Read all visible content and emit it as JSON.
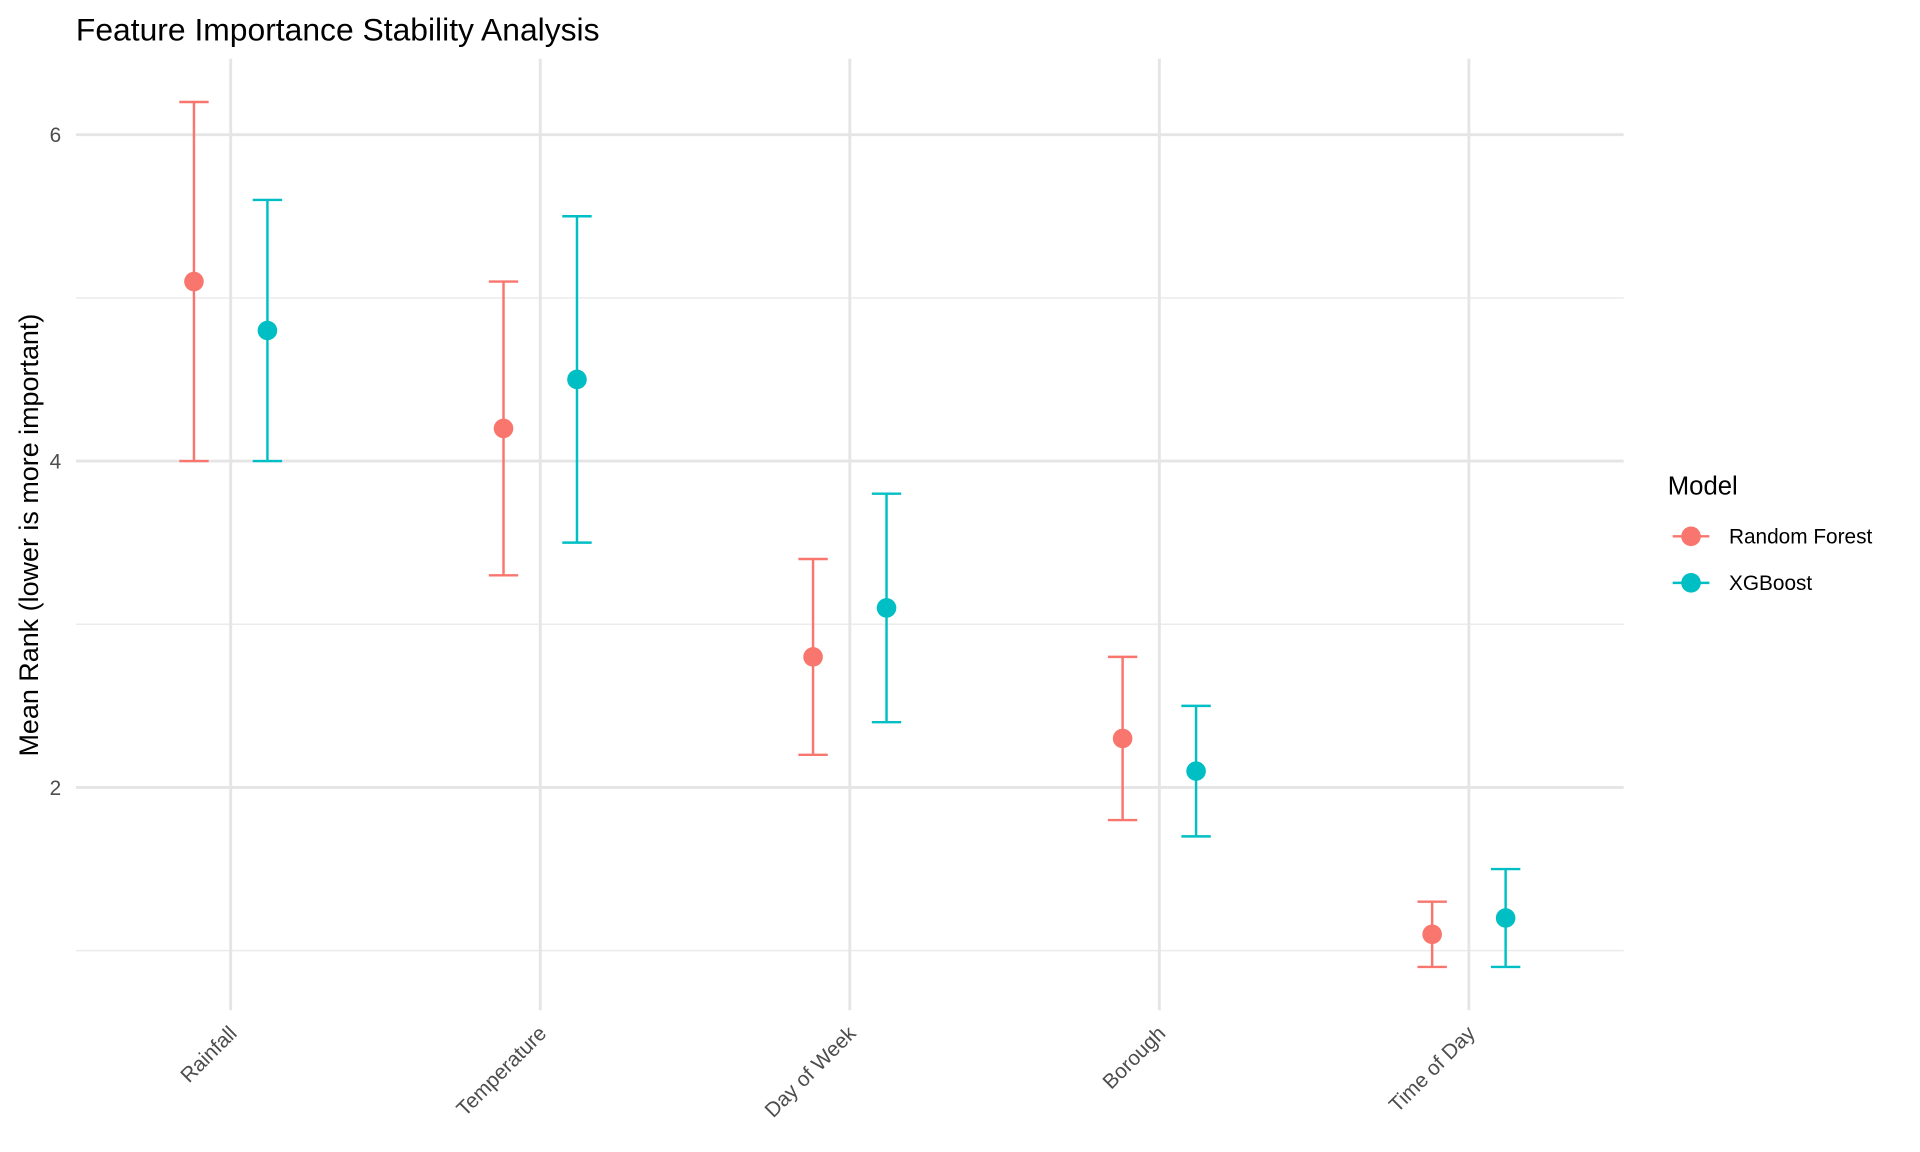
{
  "chart_data": {
    "type": "errorbar",
    "title": "Feature Importance Stability Analysis",
    "y_label": "Mean Rank (lower is more important)",
    "categories": [
      "Rainfall",
      "Temperature",
      "Day of Week",
      "Borough",
      "Time of Day"
    ],
    "series": [
      {
        "name": "Random Forest",
        "color": "#f8766d",
        "values": [
          5.1,
          4.2,
          2.8,
          2.3,
          1.1
        ],
        "errors": [
          1.1,
          0.9,
          0.6,
          0.5,
          0.2
        ]
      },
      {
        "name": "XGBoost",
        "color": "#00bfc4",
        "values": [
          4.8,
          4.5,
          3.1,
          2.1,
          1.2
        ],
        "errors": [
          0.8,
          1.0,
          0.7,
          0.4,
          0.3
        ]
      }
    ],
    "ylim": [
      0.635,
      6.465
    ],
    "yticks": [
      2,
      4,
      6
    ],
    "grid": true,
    "legend_title": "Model",
    "legend": "right"
  }
}
